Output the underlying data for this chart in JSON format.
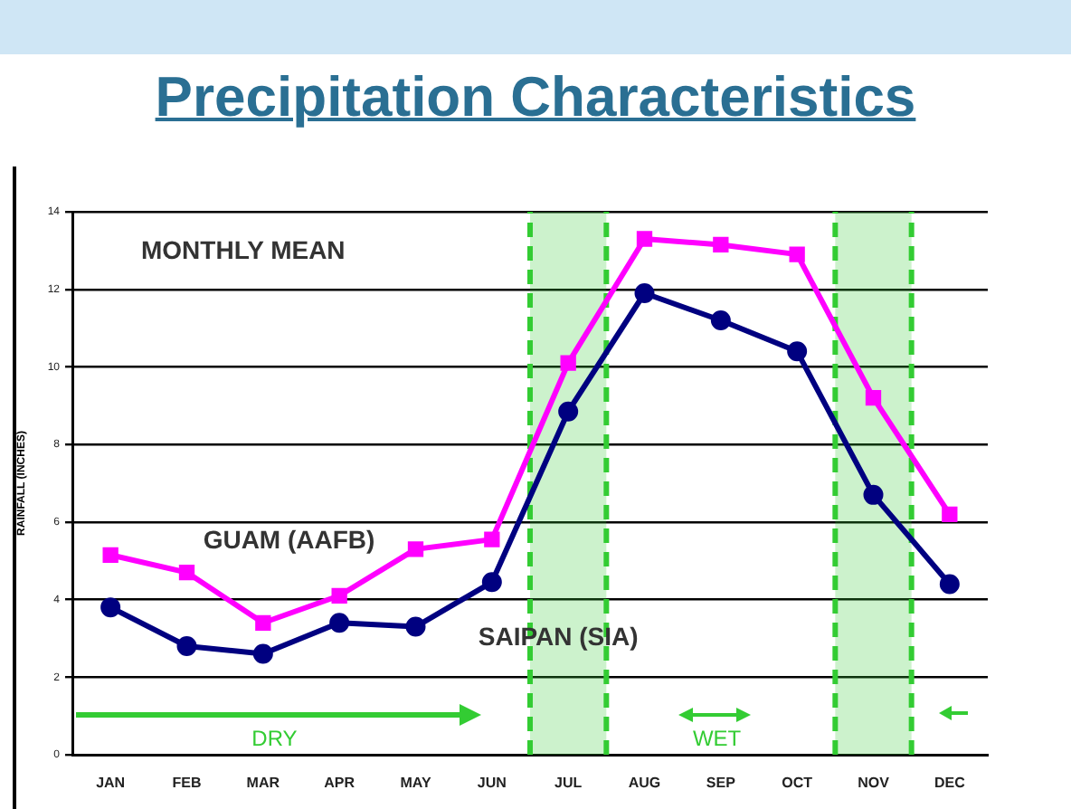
{
  "chart_data": {
    "type": "line",
    "title": "Precipitation Characteristics",
    "subtitle": "MONTHLY MEAN",
    "ylabel": "RAINFALL (INCHES)",
    "categories": [
      "JAN",
      "FEB",
      "MAR",
      "APR",
      "MAY",
      "JUN",
      "JUL",
      "AUG",
      "SEP",
      "OCT",
      "NOV",
      "DEC"
    ],
    "ylim": [
      0,
      14
    ],
    "yticks": [
      0,
      2,
      4,
      6,
      8,
      10,
      12,
      14
    ],
    "grid": "y",
    "legend": false,
    "line_style": "solid",
    "series": [
      {
        "name": "GUAM (AAFB)",
        "color": "#ff00ff",
        "marker": "square",
        "values": [
          5.15,
          4.7,
          3.4,
          4.1,
          5.3,
          5.55,
          10.1,
          13.3,
          13.15,
          12.9,
          9.2,
          6.2
        ]
      },
      {
        "name": "SAIPAN (SIA)",
        "color": "#000080",
        "marker": "circle",
        "values": [
          3.8,
          2.8,
          2.6,
          3.4,
          3.3,
          4.45,
          8.85,
          11.9,
          11.2,
          10.4,
          6.7,
          4.4
        ]
      }
    ],
    "bands": [
      {
        "axis": "x",
        "from": "JUL",
        "to": "JUL",
        "color": "#33cc33"
      },
      {
        "axis": "x",
        "from": "NOV",
        "to": "NOV",
        "color": "#33cc33"
      }
    ],
    "annotations": [
      "DRY",
      "WET"
    ]
  }
}
